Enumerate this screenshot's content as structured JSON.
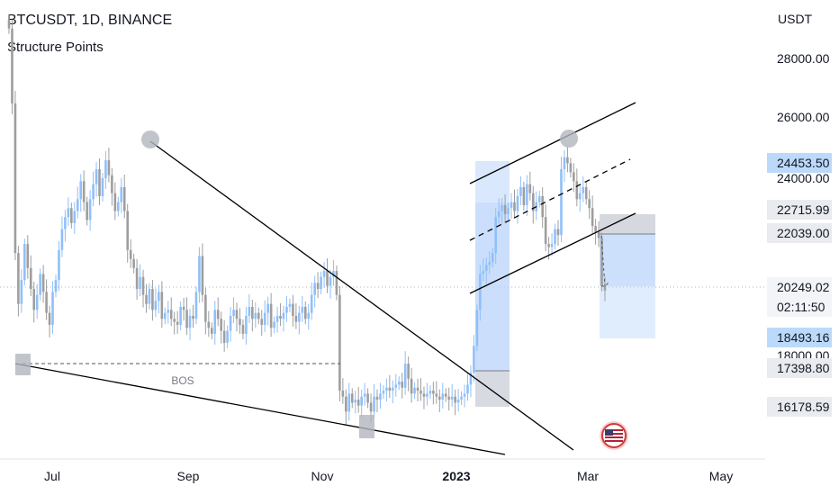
{
  "header": {
    "title": "BTCUSDT, 1D, BINANCE",
    "indicator": "Structure Points"
  },
  "annotations": {
    "bos": "BOS"
  },
  "chart_data": {
    "type": "candlestick",
    "currency_label": "USDT",
    "y_ticks": [
      "28000.00",
      "26000.00",
      "24000.00",
      "18000.00"
    ],
    "x_ticks": [
      "Jul",
      "Sep",
      "Nov",
      "2023",
      "Mar",
      "May"
    ],
    "price_labels": [
      {
        "text": "24453.50",
        "style": "blue"
      },
      {
        "text": "22715.99",
        "style": "gray"
      },
      {
        "text": "22039.00",
        "style": "gray"
      },
      {
        "text": "20249.02",
        "style": "white"
      },
      {
        "text": "02:11:50",
        "style": "white"
      },
      {
        "text": "18493.16",
        "style": "blue"
      },
      {
        "text": "17398.80",
        "style": "gray"
      },
      {
        "text": "16178.59",
        "style": "gray"
      }
    ],
    "colors": {
      "up": "#90bff9",
      "down": "#9e9e9e",
      "box_blue": "#bbd6fb",
      "box_gray": "#d1d4dc",
      "trendline": "#000000"
    },
    "candles_close": [
      29000,
      26500,
      21500,
      19800,
      20600,
      21800,
      21000,
      20300,
      19600,
      20100,
      20800,
      20200,
      19500,
      19100,
      20200,
      20600,
      21600,
      22300,
      22700,
      23000,
      22500,
      22900,
      23300,
      23900,
      23200,
      22600,
      23300,
      23800,
      24300,
      23400,
      24000,
      24600,
      24100,
      23500,
      22900,
      23200,
      23700,
      22900,
      21600,
      21300,
      21000,
      20300,
      20700,
      20100,
      19800,
      20300,
      19600,
      19900,
      20200,
      19300,
      19500,
      19600,
      19300,
      19200,
      19100,
      19700,
      19600,
      19000,
      19400,
      19300,
      20200,
      21400,
      20100,
      19200,
      19000,
      18800,
      19600,
      19300,
      18900,
      18500,
      18900,
      19400,
      19600,
      19300,
      19100,
      18800,
      19400,
      19700,
      19300,
      19500,
      19300,
      19100,
      19500,
      19800,
      19000,
      19200,
      19400,
      19300,
      19500,
      19700,
      19800,
      19400,
      19200,
      19500,
      19700,
      19300,
      19500,
      20100,
      20500,
      20300,
      20700,
      20900,
      20400,
      20700,
      20900,
      20100,
      16900,
      16700,
      16200,
      16800,
      16500,
      16600,
      16400,
      16700,
      16800,
      16500,
      16200,
      16700,
      16600,
      16800,
      16900,
      17000,
      16900,
      17000,
      17100,
      17200,
      17000,
      17800,
      17300,
      16800,
      17000,
      16900,
      16800,
      16700,
      16800,
      16900,
      16800,
      16700,
      16600,
      16800,
      16700,
      16600,
      16700,
      16500,
      16600,
      16700,
      16800,
      17100,
      17500,
      18400,
      19600,
      20800,
      20900,
      21100,
      21200,
      21500,
      22700,
      22900,
      23100,
      22800,
      23000,
      23200,
      22900,
      23400,
      23700,
      23100,
      23800,
      23500,
      22900,
      23200,
      23400,
      22700,
      21800,
      21700,
      21800,
      22300,
      22100,
      24300,
      24700,
      24500,
      24200,
      23900,
      23300,
      23500,
      23700,
      23300,
      23000,
      22400,
      22200,
      22000,
      20400,
      20250
    ]
  }
}
